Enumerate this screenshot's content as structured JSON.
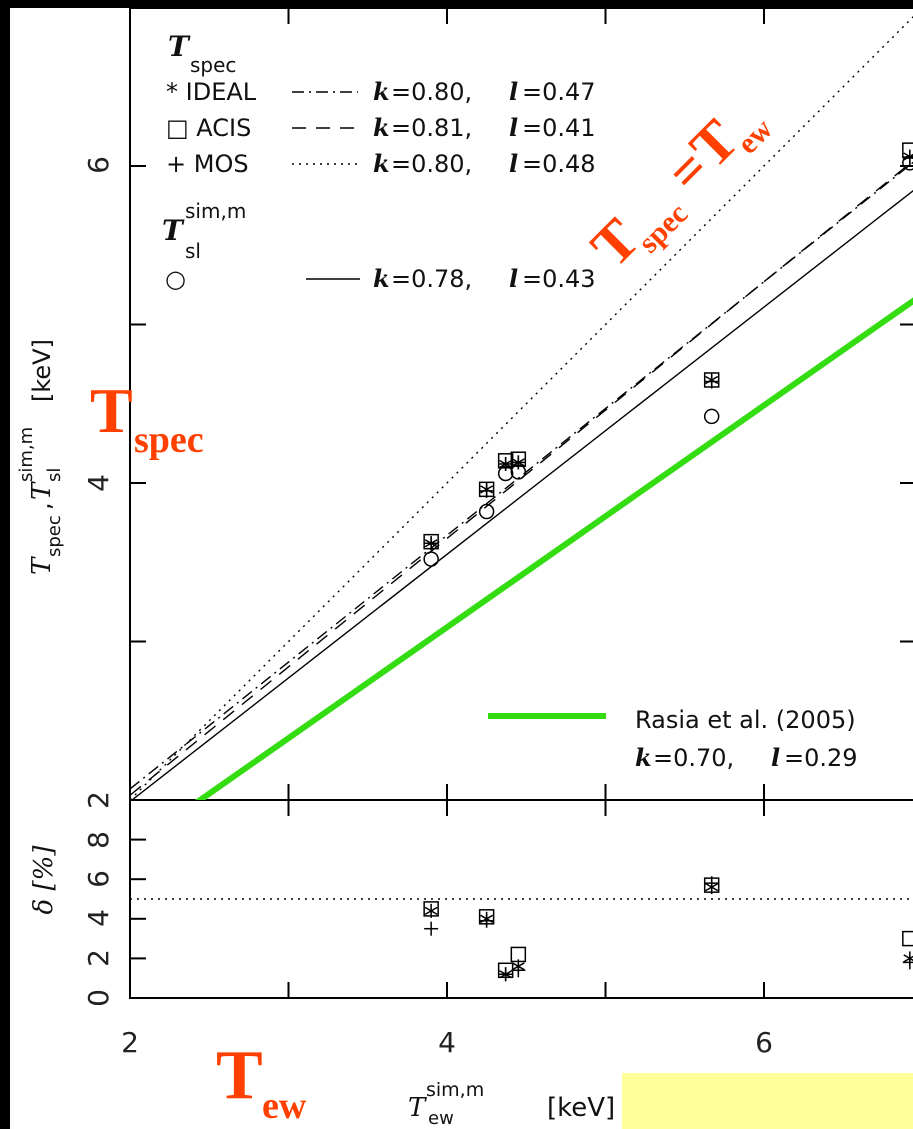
{
  "chart_data": [
    {
      "type": "line",
      "panel": "main",
      "xlim": [
        2,
        6.95
      ],
      "ylim": [
        2,
        6.95
      ],
      "x_ticks": [
        "2",
        "4",
        "6"
      ],
      "y_ticks": [
        "2",
        "4",
        "6"
      ],
      "xlabel": "T_ew^sim,m [keV]",
      "ylabel": "T_spec, T_sl^sim,m [keV]",
      "legend": {
        "group1_title": "T_spec",
        "entries": [
          {
            "symbol": "*",
            "name": "IDEAL",
            "fit": "k=0.80, l=0.47",
            "line": "dash-dot"
          },
          {
            "symbol": "□",
            "name": "ACIS",
            "fit": "k=0.81, l=0.41",
            "line": "dashed"
          },
          {
            "symbol": "+",
            "name": "MOS",
            "fit": "k=0.80, l=0.48",
            "line": "dotted"
          }
        ],
        "group2_title": "T_sl^sim,m",
        "entry2": {
          "symbol": "○",
          "fit": "k=0.78, l=0.43",
          "line": "solid"
        },
        "rasia": {
          "name": "Rasia et al. (2005)",
          "fit": "k=0.70, l=0.29",
          "color": "#33dd11"
        }
      },
      "series": [
        {
          "name": "IDEAL",
          "x": [
            3.9,
            4.25,
            4.37,
            4.45,
            5.67,
            6.92
          ],
          "y": [
            3.62,
            3.96,
            4.12,
            4.13,
            4.65,
            6.06
          ]
        },
        {
          "name": "ACIS",
          "x": [
            3.9,
            4.25,
            4.37,
            4.45,
            5.67,
            6.92
          ],
          "y": [
            3.63,
            3.96,
            4.14,
            4.15,
            4.65,
            6.1
          ]
        },
        {
          "name": "MOS",
          "x": [
            3.9,
            4.25,
            4.37,
            4.45,
            5.67,
            6.92
          ],
          "y": [
            3.62,
            3.95,
            4.12,
            4.13,
            4.64,
            6.05
          ]
        },
        {
          "name": "T_sl^sim,m",
          "x": [
            3.9,
            4.25,
            4.37,
            4.45,
            5.67,
            6.92
          ],
          "y": [
            3.52,
            3.82,
            4.06,
            4.07,
            4.42,
            6.02
          ]
        }
      ],
      "fit_lines": [
        {
          "name": "T_spec = T_ew",
          "k": 1.0,
          "l": 0.0,
          "style": "dotted",
          "color": "#000000"
        },
        {
          "name": "dash-dot",
          "k": 0.8,
          "l": 0.47,
          "style": "dash-dot",
          "color": "#000000"
        },
        {
          "name": "dashed",
          "k": 0.81,
          "l": 0.41,
          "style": "dashed",
          "color": "#000000"
        },
        {
          "name": "solid",
          "k": 0.78,
          "l": 0.43,
          "style": "solid",
          "color": "#000000"
        },
        {
          "name": "Rasia",
          "k": 0.7,
          "l": 0.29,
          "style": "solid",
          "color": "#33dd11"
        }
      ]
    },
    {
      "type": "scatter",
      "panel": "residual",
      "xlim": [
        2,
        6.95
      ],
      "ylim": [
        0,
        10
      ],
      "y_ticks": [
        "0",
        "2",
        "4",
        "6",
        "8"
      ],
      "ylabel": "δ [%]",
      "reference_line": 5,
      "series": [
        {
          "name": "IDEAL",
          "x": [
            3.9,
            4.25,
            4.37,
            4.45,
            5.67,
            6.92
          ],
          "y": [
            4.4,
            4.0,
            1.2,
            1.6,
            5.6,
            2.0
          ]
        },
        {
          "name": "ACIS",
          "x": [
            3.9,
            4.25,
            4.37,
            4.45,
            5.67,
            6.92
          ],
          "y": [
            4.5,
            4.1,
            1.4,
            2.2,
            5.7,
            3.0
          ]
        },
        {
          "name": "MOS",
          "x": [
            3.9,
            4.25,
            4.37,
            4.45,
            5.67,
            6.92
          ],
          "y": [
            3.5,
            3.9,
            1.2,
            1.4,
            5.8,
            1.8
          ]
        }
      ]
    }
  ],
  "annotations": {
    "tspec_big": "T",
    "tspec_sub": "spec",
    "tew_big": "T",
    "tew_sub": "ew",
    "diag_T1": "T",
    "diag_spec": "spec",
    "diag_eq": "=",
    "diag_T2": "T",
    "diag_ew": "ew"
  },
  "labels": {
    "legend_T": "T",
    "legend_spec_sub": "spec",
    "legend_ideal": "* IDEAL",
    "legend_acis": "□ ACIS",
    "legend_mos": "+ MOS",
    "fit_ideal_k": "k",
    "fit_ideal_rest": "=0.80, ",
    "fit_ideal_l": "l",
    "fit_ideal_lval": "=0.47",
    "fit_acis_rest": "=0.81, ",
    "fit_acis_lval": "=0.41",
    "fit_mos_rest": "=0.80, ",
    "fit_mos_lval": "=0.48",
    "legend_Tsl": "T",
    "legend_simm_sup": "sim,m",
    "legend_sl_sub": "sl",
    "legend_circle": "○",
    "fit_sl_rest": "=0.78, ",
    "fit_sl_lval": "=0.43",
    "rasia_name": "Rasia et al. (2005)",
    "rasia_rest": "=0.70, ",
    "rasia_lval": "=0.29",
    "xlabel_T": "T",
    "xlabel_sup": "sim,m",
    "xlabel_sub": "ew",
    "xlabel_unit": "[keV]",
    "ylabel_T": "T",
    "ylabel_spec": "spec",
    "ylabel_comma": ",",
    "ylabel_T2": "T",
    "ylabel_sup": "sim,m",
    "ylabel_sl": "sl",
    "ylabel_unit": "[keV]",
    "delta_label": "δ [%]"
  }
}
